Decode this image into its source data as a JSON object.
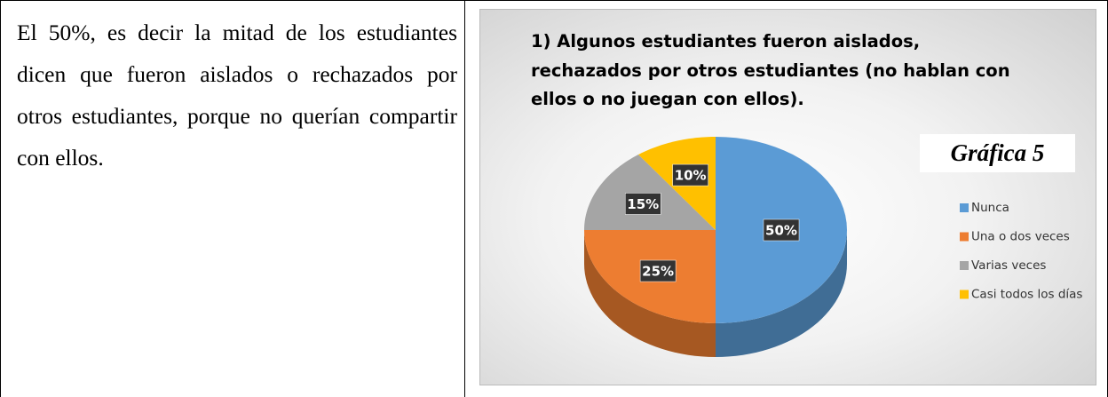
{
  "text": "El 50%, es decir la mitad de los estudiantes dicen que fueron aislados o rechazados por otros estudiantes, porque no querían compartir con ellos.",
  "chart_data": {
    "type": "pie",
    "title": "1) Algunos estudiantes fueron aislados, rechazados por otros estudiantes (no hablan con ellos o no juegan con ellos).",
    "annotation": "Gráfica 5",
    "categories": [
      "Nunca",
      "Una o dos veces",
      "Varias veces",
      "Casi todos los días"
    ],
    "values": [
      50,
      25,
      15,
      10
    ],
    "value_labels": [
      "50%",
      "25%",
      "15%",
      "10%"
    ],
    "colors": [
      "#5b9bd5",
      "#ed7d31",
      "#a5a5a5",
      "#ffc000"
    ],
    "legend": "right"
  }
}
